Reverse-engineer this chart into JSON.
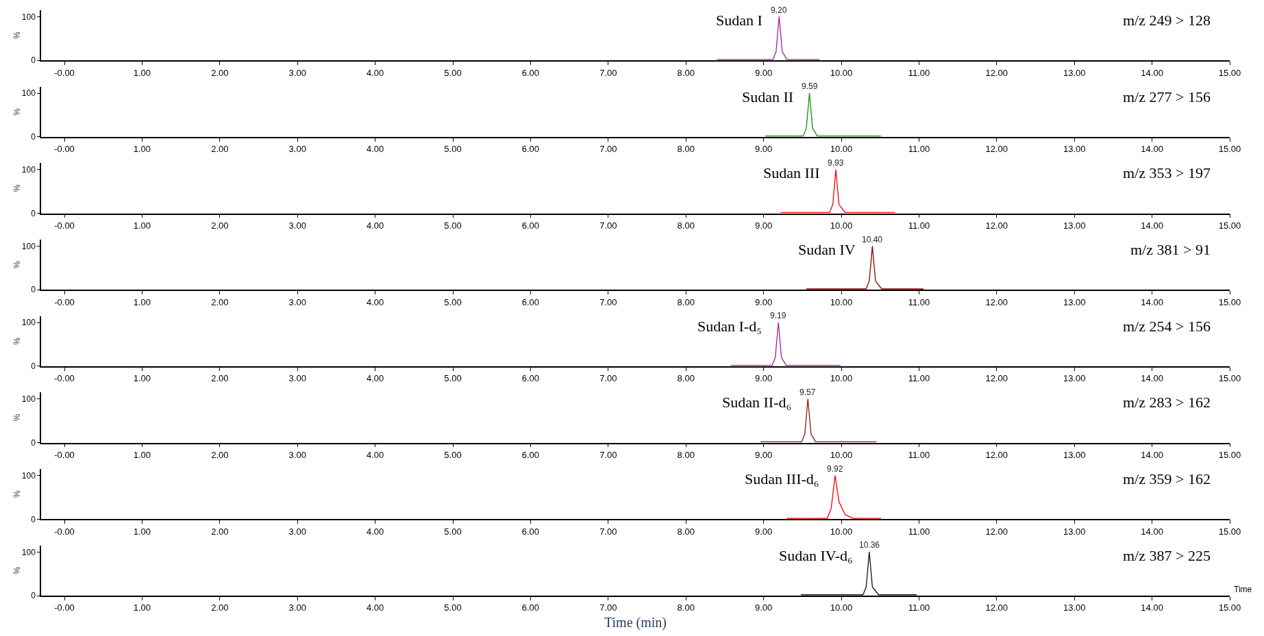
{
  "chart_data": [
    {
      "type": "line",
      "title": "Sudan I",
      "subtitle": "m/z 249 > 128",
      "ylabel": "%",
      "annotations": [
        {
          "text": "9.20",
          "x": 9.2,
          "y": 100
        }
      ],
      "xlim": [
        -0.3,
        15
      ],
      "ylim": [
        0,
        115
      ],
      "yticks": [
        0,
        100
      ],
      "xticks": [
        {
          "value": 0,
          "label": "-0.00"
        },
        {
          "value": 1,
          "label": "1.00"
        },
        {
          "value": 2,
          "label": "2.00"
        },
        {
          "value": 3,
          "label": "3.00"
        },
        {
          "value": 4,
          "label": "4.00"
        },
        {
          "value": 5,
          "label": "5.00"
        },
        {
          "value": 6,
          "label": "6.00"
        },
        {
          "value": 7,
          "label": "7.00"
        },
        {
          "value": 8,
          "label": "8.00"
        },
        {
          "value": 9,
          "label": "9.00"
        },
        {
          "value": 10,
          "label": "10.00"
        },
        {
          "value": 11,
          "label": "11.00"
        },
        {
          "value": 12,
          "label": "12.00"
        },
        {
          "value": 13,
          "label": "13.00"
        },
        {
          "value": 14,
          "label": "14.00"
        },
        {
          "value": 15,
          "label": "15.00"
        }
      ],
      "marker": "none",
      "series": [
        {
          "color": "#9b1fa3",
          "x": [
            8.4,
            9.12,
            9.16,
            9.2,
            9.24,
            9.3,
            9.72
          ],
          "values": [
            2,
            2,
            20,
            100,
            20,
            2,
            2
          ]
        }
      ]
    },
    {
      "type": "line",
      "title": "Sudan II",
      "subtitle": "m/z 277 > 156",
      "ylabel": "%",
      "annotations": [
        {
          "text": "9.59",
          "x": 9.59,
          "y": 100
        }
      ],
      "xlim": [
        -0.3,
        15
      ],
      "ylim": [
        0,
        115
      ],
      "yticks": [
        0,
        100
      ],
      "xticks": [
        {
          "value": 0,
          "label": "-0.00"
        },
        {
          "value": 1,
          "label": "1.00"
        },
        {
          "value": 2,
          "label": "2.00"
        },
        {
          "value": 3,
          "label": "3.00"
        },
        {
          "value": 4,
          "label": "4.00"
        },
        {
          "value": 5,
          "label": "5.00"
        },
        {
          "value": 6,
          "label": "6.00"
        },
        {
          "value": 7,
          "label": "7.00"
        },
        {
          "value": 8,
          "label": "8.00"
        },
        {
          "value": 9,
          "label": "9.00"
        },
        {
          "value": 10,
          "label": "10.00"
        },
        {
          "value": 11,
          "label": "11.00"
        },
        {
          "value": 12,
          "label": "12.00"
        },
        {
          "value": 13,
          "label": "13.00"
        },
        {
          "value": 14,
          "label": "14.00"
        },
        {
          "value": 15,
          "label": "15.00"
        }
      ],
      "marker": "none",
      "series": [
        {
          "color": "#138a13",
          "x": [
            9.02,
            9.51,
            9.55,
            9.59,
            9.63,
            9.69,
            10.51
          ],
          "values": [
            2,
            2,
            20,
            100,
            20,
            2,
            2
          ]
        }
      ]
    },
    {
      "type": "line",
      "title": "Sudan III",
      "subtitle": "m/z 353 > 197",
      "ylabel": "%",
      "annotations": [
        {
          "text": "9.93",
          "x": 9.93,
          "y": 100
        }
      ],
      "xlim": [
        -0.3,
        15
      ],
      "ylim": [
        0,
        115
      ],
      "yticks": [
        0,
        100
      ],
      "xticks": [
        {
          "value": 0,
          "label": "-0.00"
        },
        {
          "value": 1,
          "label": "1.00"
        },
        {
          "value": 2,
          "label": "2.00"
        },
        {
          "value": 3,
          "label": "3.00"
        },
        {
          "value": 4,
          "label": "4.00"
        },
        {
          "value": 5,
          "label": "5.00"
        },
        {
          "value": 6,
          "label": "6.00"
        },
        {
          "value": 7,
          "label": "7.00"
        },
        {
          "value": 8,
          "label": "8.00"
        },
        {
          "value": 9,
          "label": "9.00"
        },
        {
          "value": 10,
          "label": "10.00"
        },
        {
          "value": 11,
          "label": "11.00"
        },
        {
          "value": 12,
          "label": "12.00"
        },
        {
          "value": 13,
          "label": "13.00"
        },
        {
          "value": 14,
          "label": "14.00"
        },
        {
          "value": 15,
          "label": "15.00"
        }
      ],
      "marker": "none",
      "series": [
        {
          "color": "#ff0000",
          "x": [
            9.22,
            9.85,
            9.89,
            9.93,
            9.97,
            10.05,
            10.69
          ],
          "values": [
            2,
            2,
            20,
            100,
            20,
            2,
            2
          ]
        }
      ]
    },
    {
      "type": "line",
      "title": "Sudan IV",
      "subtitle": "m/z 381 > 91",
      "ylabel": "%",
      "annotations": [
        {
          "text": "10.40",
          "x": 10.4,
          "y": 100
        }
      ],
      "xlim": [
        -0.3,
        15
      ],
      "ylim": [
        0,
        115
      ],
      "yticks": [
        0,
        100
      ],
      "xticks": [
        {
          "value": 0,
          "label": "-0.00"
        },
        {
          "value": 1,
          "label": "1.00"
        },
        {
          "value": 2,
          "label": "2.00"
        },
        {
          "value": 3,
          "label": "3.00"
        },
        {
          "value": 4,
          "label": "4.00"
        },
        {
          "value": 5,
          "label": "5.00"
        },
        {
          "value": 6,
          "label": "6.00"
        },
        {
          "value": 7,
          "label": "7.00"
        },
        {
          "value": 8,
          "label": "8.00"
        },
        {
          "value": 9,
          "label": "9.00"
        },
        {
          "value": 10,
          "label": "10.00"
        },
        {
          "value": 11,
          "label": "11.00"
        },
        {
          "value": 12,
          "label": "12.00"
        },
        {
          "value": 13,
          "label": "13.00"
        },
        {
          "value": 14,
          "label": "14.00"
        },
        {
          "value": 15,
          "label": "15.00"
        }
      ],
      "marker": "none",
      "series": [
        {
          "color": "#8b0000",
          "x": [
            9.55,
            10.32,
            10.36,
            10.4,
            10.44,
            10.52,
            11.06
          ],
          "values": [
            2,
            2,
            20,
            100,
            20,
            2,
            2
          ]
        }
      ]
    },
    {
      "type": "line",
      "title": "Sudan I-d₅",
      "subtitle": "m/z 254 > 156",
      "ylabel": "%",
      "annotations": [
        {
          "text": "9.19",
          "x": 9.19,
          "y": 100
        }
      ],
      "xlim": [
        -0.3,
        15
      ],
      "ylim": [
        0,
        115
      ],
      "yticks": [
        0,
        100
      ],
      "xticks": [
        {
          "value": 0,
          "label": "-0.00"
        },
        {
          "value": 1,
          "label": "1.00"
        },
        {
          "value": 2,
          "label": "2.00"
        },
        {
          "value": 3,
          "label": "3.00"
        },
        {
          "value": 4,
          "label": "4.00"
        },
        {
          "value": 5,
          "label": "5.00"
        },
        {
          "value": 6,
          "label": "6.00"
        },
        {
          "value": 7,
          "label": "7.00"
        },
        {
          "value": 8,
          "label": "8.00"
        },
        {
          "value": 9,
          "label": "9.00"
        },
        {
          "value": 10,
          "label": "10.00"
        },
        {
          "value": 11,
          "label": "11.00"
        },
        {
          "value": 12,
          "label": "12.00"
        },
        {
          "value": 13,
          "label": "13.00"
        },
        {
          "value": 14,
          "label": "14.00"
        },
        {
          "value": 15,
          "label": "15.00"
        }
      ],
      "marker": "none",
      "series": [
        {
          "color": "#9b1fa3",
          "x": [
            8.58,
            9.11,
            9.15,
            9.19,
            9.23,
            9.29,
            9.99
          ],
          "values": [
            2,
            2,
            20,
            100,
            20,
            2,
            2
          ]
        }
      ]
    },
    {
      "type": "line",
      "title": "Sudan II-d₆",
      "subtitle": "m/z 283 > 162",
      "ylabel": "%",
      "annotations": [
        {
          "text": "9.57",
          "x": 9.57,
          "y": 100
        }
      ],
      "xlim": [
        -0.3,
        15
      ],
      "ylim": [
        0,
        115
      ],
      "yticks": [
        0,
        100
      ],
      "xticks": [
        {
          "value": 0,
          "label": "-0.00"
        },
        {
          "value": 1,
          "label": "1.00"
        },
        {
          "value": 2,
          "label": "2.00"
        },
        {
          "value": 3,
          "label": "3.00"
        },
        {
          "value": 4,
          "label": "4.00"
        },
        {
          "value": 5,
          "label": "5.00"
        },
        {
          "value": 6,
          "label": "6.00"
        },
        {
          "value": 7,
          "label": "7.00"
        },
        {
          "value": 8,
          "label": "8.00"
        },
        {
          "value": 9,
          "label": "9.00"
        },
        {
          "value": 10,
          "label": "10.00"
        },
        {
          "value": 11,
          "label": "11.00"
        },
        {
          "value": 12,
          "label": "12.00"
        },
        {
          "value": 13,
          "label": "13.00"
        },
        {
          "value": 14,
          "label": "14.00"
        },
        {
          "value": 15,
          "label": "15.00"
        }
      ],
      "marker": "none",
      "series": [
        {
          "color": "#8b1a1a",
          "x": [
            8.96,
            9.49,
            9.53,
            9.57,
            9.61,
            9.67,
            10.45
          ],
          "values": [
            2,
            2,
            20,
            100,
            20,
            2,
            2
          ]
        }
      ]
    },
    {
      "type": "line",
      "title": "Sudan III-d₆",
      "subtitle": "m/z 359 > 162",
      "ylabel": "%",
      "annotations": [
        {
          "text": "9.92",
          "x": 9.92,
          "y": 100
        }
      ],
      "xlim": [
        -0.3,
        15
      ],
      "ylim": [
        0,
        115
      ],
      "yticks": [
        0,
        100
      ],
      "xticks": [
        {
          "value": 0,
          "label": "-0.00"
        },
        {
          "value": 1,
          "label": "1.00"
        },
        {
          "value": 2,
          "label": "2.00"
        },
        {
          "value": 3,
          "label": "3.00"
        },
        {
          "value": 4,
          "label": "4.00"
        },
        {
          "value": 5,
          "label": "5.00"
        },
        {
          "value": 6,
          "label": "6.00"
        },
        {
          "value": 7,
          "label": "7.00"
        },
        {
          "value": 8,
          "label": "8.00"
        },
        {
          "value": 9,
          "label": "9.00"
        },
        {
          "value": 10,
          "label": "10.00"
        },
        {
          "value": 11,
          "label": "11.00"
        },
        {
          "value": 12,
          "label": "12.00"
        },
        {
          "value": 13,
          "label": "13.00"
        },
        {
          "value": 14,
          "label": "14.00"
        },
        {
          "value": 15,
          "label": "15.00"
        }
      ],
      "marker": "none",
      "series": [
        {
          "color": "#ff0000",
          "x": [
            9.3,
            9.82,
            9.87,
            9.92,
            9.97,
            10.05,
            10.15,
            10.51
          ],
          "values": [
            2,
            2,
            25,
            100,
            40,
            10,
            2,
            2
          ]
        }
      ]
    },
    {
      "type": "line",
      "title": "Sudan IV-d₆",
      "subtitle": "m/z 387 > 225",
      "xlabel": "Time (min)",
      "annotations": [
        "Time",
        {
          "text": "10.36",
          "x": 10.36,
          "y": 100
        }
      ],
      "ylabel": "%",
      "xlim": [
        -0.3,
        15
      ],
      "ylim": [
        0,
        115
      ],
      "yticks": [
        0,
        100
      ],
      "xticks": [
        {
          "value": 0,
          "label": "-0.00"
        },
        {
          "value": 1,
          "label": "1.00"
        },
        {
          "value": 2,
          "label": "2.00"
        },
        {
          "value": 3,
          "label": "3.00"
        },
        {
          "value": 4,
          "label": "4.00"
        },
        {
          "value": 5,
          "label": "5.00"
        },
        {
          "value": 6,
          "label": "6.00"
        },
        {
          "value": 7,
          "label": "7.00"
        },
        {
          "value": 8,
          "label": "8.00"
        },
        {
          "value": 9,
          "label": "9.00"
        },
        {
          "value": 10,
          "label": "10.00"
        },
        {
          "value": 11,
          "label": "11.00"
        },
        {
          "value": 12,
          "label": "12.00"
        },
        {
          "value": 13,
          "label": "13.00"
        },
        {
          "value": 14,
          "label": "14.00"
        },
        {
          "value": 15,
          "label": "15.00"
        }
      ],
      "marker": "none",
      "series": [
        {
          "color": "#111111",
          "x": [
            9.48,
            10.28,
            10.32,
            10.36,
            10.4,
            10.48,
            10.97
          ],
          "values": [
            2,
            2,
            20,
            100,
            20,
            2,
            2
          ]
        }
      ]
    }
  ]
}
